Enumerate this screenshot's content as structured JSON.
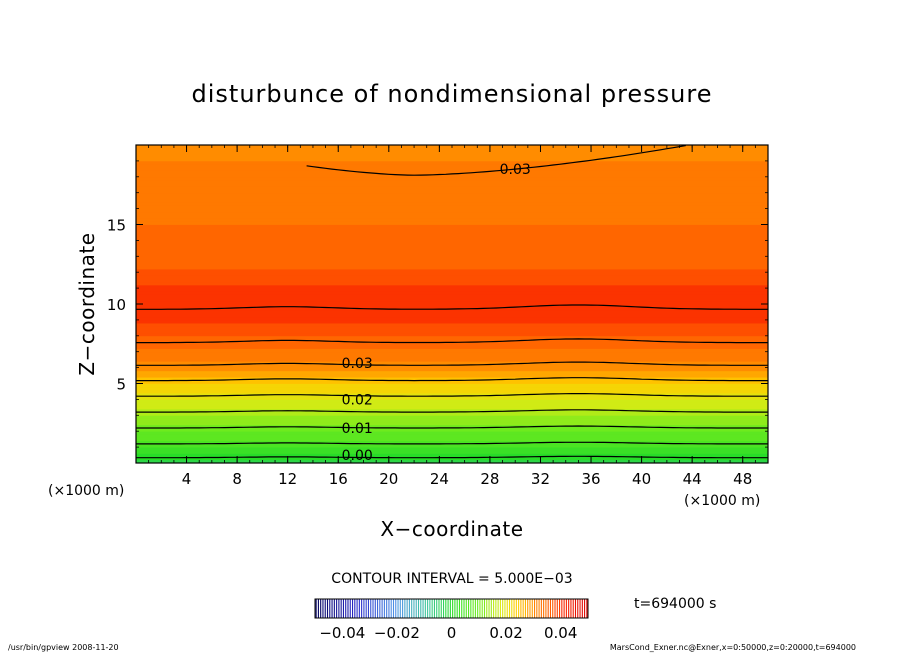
{
  "chart_data": {
    "type": "contour",
    "title": "disturbunce of nondimensional pressure",
    "xlabel": "X−coordinate",
    "ylabel": "Z−coordinate",
    "x_unit_left": "(×1000 m)",
    "x_unit_right": "(×1000 m)",
    "xlim": [
      0,
      50
    ],
    "ylim": [
      0,
      20
    ],
    "x_ticks": [
      4,
      8,
      12,
      16,
      20,
      24,
      28,
      32,
      36,
      40,
      44,
      48
    ],
    "y_ticks": [
      5,
      10,
      15
    ],
    "contour_interval_text": "CONTOUR INTERVAL = 5.000E−03",
    "contour_labels": [
      {
        "text": "0.03",
        "x": 30,
        "z": 18.5
      },
      {
        "text": "0.03",
        "x": 17.5,
        "z": 6.3
      },
      {
        "text": "0.02",
        "x": 17.5,
        "z": 4.0
      },
      {
        "text": "0.01",
        "x": 17.5,
        "z": 2.2
      },
      {
        "text": "0.00",
        "x": 17.5,
        "z": 0.5
      }
    ],
    "colorbar": {
      "tick_labels": [
        "−0.04",
        "−0.02",
        "0",
        "0.02",
        "0.04"
      ],
      "range": [
        -0.05,
        0.05
      ]
    },
    "profile": {
      "z": [
        0,
        1,
        2,
        3,
        4,
        5,
        6,
        7,
        8,
        9,
        10,
        11,
        12,
        14,
        16,
        18,
        20
      ],
      "value": [
        -0.002,
        0.004,
        0.009,
        0.014,
        0.019,
        0.024,
        0.0295,
        0.033,
        0.0365,
        0.039,
        0.0405,
        0.039,
        0.0365,
        0.0345,
        0.033,
        0.032,
        0.0305
      ]
    }
  },
  "time_label": "t=694000 s",
  "footer": {
    "left": "/usr/bin/gpview   2008-11-20",
    "right": "MarsCond_Exner.nc@Exner,x=0:50000,z=0:20000,t=694000"
  }
}
